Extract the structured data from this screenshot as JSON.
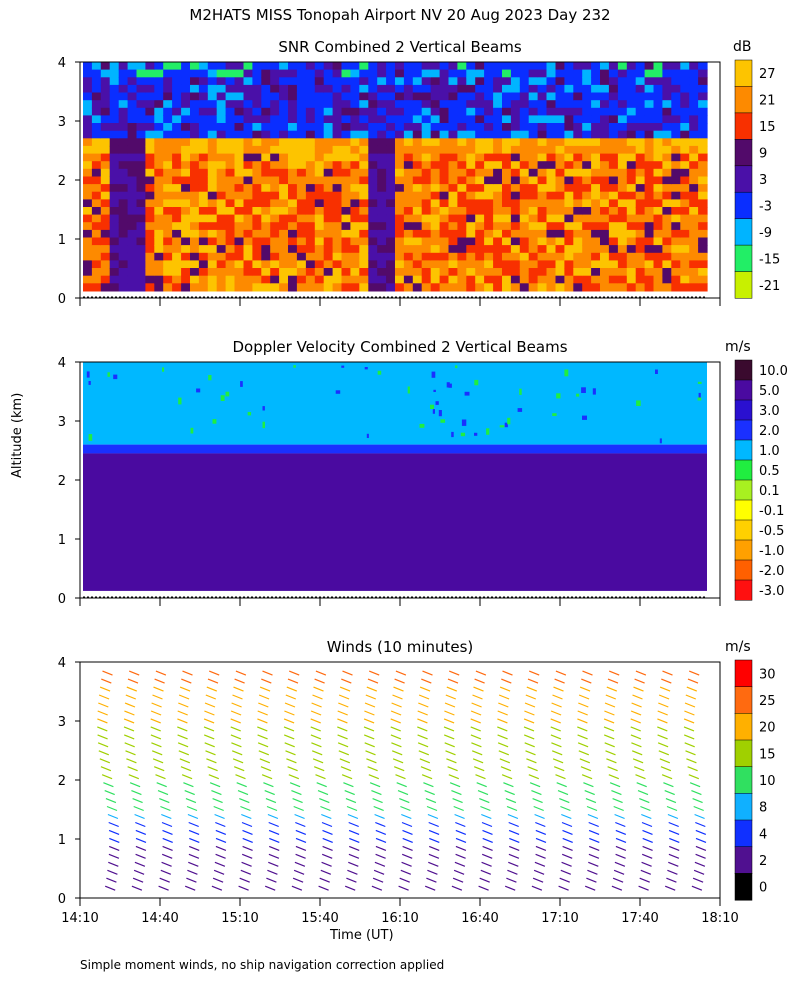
{
  "title": "M2HATS MISS Tonopah Airport NV  20 Aug 2023 Day 232",
  "footer": "Simple moment winds, no ship navigation correction applied",
  "ylabel": "Altitude (km)",
  "xlabel": "Time (UT)",
  "panels": [
    {
      "title": "SNR Combined 2 Vertical Beams",
      "unit": "dB"
    },
    {
      "title": "Doppler Velocity Combined 2 Vertical Beams",
      "unit": "m/s"
    },
    {
      "title": "Winds (10 minutes)",
      "unit": "m/s"
    }
  ],
  "chart_data": [
    {
      "type": "heatmap",
      "title": "SNR Combined 2 Vertical Beams",
      "ylabel": "Altitude (km)",
      "colorbar_label": "dB",
      "x_ticks": [
        "14:10",
        "14:40",
        "15:10",
        "15:40",
        "16:10",
        "16:40",
        "17:10",
        "17:40",
        "18:10"
      ],
      "y_ticks": [
        0,
        1,
        2,
        3,
        4
      ],
      "ylim": [
        0,
        4
      ],
      "colorbar_ticks": [
        27,
        21,
        15,
        9,
        3,
        -3,
        -9,
        -15,
        -21
      ],
      "colorbar_colors": [
        "#fdc400",
        "#fd8a00",
        "#f83000",
        "#520a6a",
        "#4a10a8",
        "#0a2eff",
        "#00b4ff",
        "#22ee66",
        "#c8f000"
      ],
      "layers": [
        {
          "range_km": [
            2.45,
            2.75
          ],
          "approx_db": 18
        },
        {
          "range_km": [
            0.1,
            2.4
          ],
          "approx_db": 14
        },
        {
          "range_km": [
            2.75,
            4.0
          ],
          "approx_db": 3
        }
      ]
    },
    {
      "type": "heatmap",
      "title": "Doppler Velocity Combined 2 Vertical Beams",
      "ylabel": "Altitude (km)",
      "colorbar_label": "m/s",
      "x_ticks": [
        "14:10",
        "14:40",
        "15:10",
        "15:40",
        "16:10",
        "16:40",
        "17:10",
        "17:40",
        "18:10"
      ],
      "y_ticks": [
        0,
        1,
        2,
        3,
        4
      ],
      "ylim": [
        0,
        4
      ],
      "colorbar_ticks": [
        "10.0",
        "5.0",
        "3.0",
        "2.0",
        "1.0",
        "0.5",
        "0.1",
        "-0.1",
        "-0.5",
        "-1.0",
        "-2.0",
        "-3.0"
      ],
      "colorbar_colors": [
        "#3a0a2e",
        "#4a0aa0",
        "#2a10d0",
        "#1a30ff",
        "#00b8ff",
        "#20ee40",
        "#a8f020",
        "#ffff00",
        "#ffd000",
        "#ffa000",
        "#ff6000",
        "#ff1010"
      ],
      "layers": [
        {
          "range_km": [
            0.1,
            2.45
          ],
          "approx_ms": 3.0
        },
        {
          "range_km": [
            2.45,
            2.6
          ],
          "approx_ms": 2.0
        },
        {
          "range_km": [
            2.6,
            4.0
          ],
          "approx_ms": 1.0
        }
      ]
    },
    {
      "type": "scatter",
      "title": "Winds (10 minutes)",
      "ylabel": "Altitude (km)",
      "xlabel": "Time (UT)",
      "colorbar_label": "m/s",
      "x_ticks": [
        "14:10",
        "14:40",
        "15:10",
        "15:40",
        "16:10",
        "16:40",
        "17:10",
        "17:40",
        "18:10"
      ],
      "y_ticks": [
        0,
        1,
        2,
        3,
        4
      ],
      "ylim": [
        0,
        4
      ],
      "colorbar_ticks": [
        30,
        25,
        20,
        15,
        10,
        8,
        4,
        2,
        0
      ],
      "colorbar_colors": [
        "#ff0000",
        "#ff6a10",
        "#ffb000",
        "#a0d000",
        "#30e060",
        "#10b0ff",
        "#1030ff",
        "#501090",
        "#000000"
      ],
      "profile_times": [
        "14:10",
        "14:20",
        "14:30",
        "14:40",
        "14:50",
        "15:00",
        "15:10",
        "15:20",
        "15:30",
        "15:40",
        "15:50",
        "16:00",
        "16:10",
        "16:20",
        "16:30",
        "16:40",
        "16:50",
        "17:00",
        "17:10",
        "17:20",
        "17:30",
        "17:40",
        "17:50"
      ],
      "speed_profile_ms": [
        {
          "alt_km": 0.3,
          "speed": 3
        },
        {
          "alt_km": 1.0,
          "speed": 4
        },
        {
          "alt_km": 1.5,
          "speed": 10
        },
        {
          "alt_km": 2.0,
          "speed": 15
        },
        {
          "alt_km": 2.5,
          "speed": 18
        },
        {
          "alt_km": 3.0,
          "speed": 20
        },
        {
          "alt_km": 3.5,
          "speed": 24
        },
        {
          "alt_km": 4.0,
          "speed": 27
        }
      ]
    }
  ]
}
